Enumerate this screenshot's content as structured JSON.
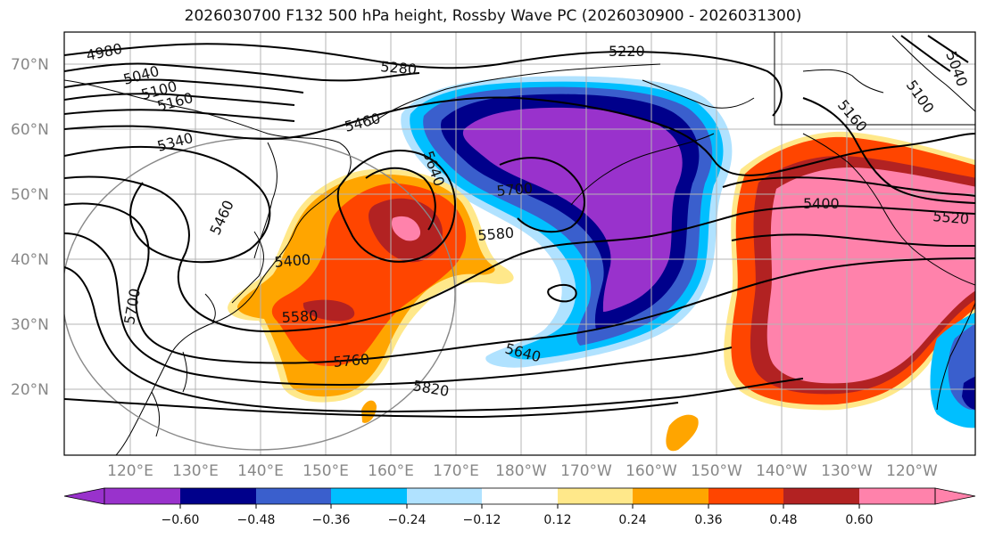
{
  "title": "2026030700 F132 500 hPa height, Rossby Wave PC (2026030900 - 2026031300)",
  "lat_labels": [
    "70°N",
    "60°N",
    "50°N",
    "40°N",
    "30°N",
    "20°N"
  ],
  "lon_labels": [
    "120°E",
    "130°E",
    "140°E",
    "150°E",
    "160°E",
    "170°E",
    "180°W",
    "170°W",
    "160°W",
    "150°W",
    "140°W",
    "130°W",
    "120°W"
  ],
  "contour_labels": [
    "4980",
    "5040",
    "5100",
    "5160",
    "5220",
    "5280",
    "5340",
    "5460",
    "5640",
    "5700",
    "5460",
    "5400",
    "5580",
    "5760",
    "5820",
    "5640",
    "5580",
    "5400",
    "5520",
    "5160",
    "5040",
    "5100",
    "5700"
  ],
  "colorbar": {
    "ticks": [
      "−0.60",
      "−0.48",
      "−0.36",
      "−0.24",
      "−0.12",
      "0.12",
      "0.24",
      "0.36",
      "0.48",
      "0.60"
    ],
    "colors": [
      "#9932cc",
      "#00008b",
      "#3a5fcd",
      "#00bfff",
      "#b0e2ff",
      "#ffffff",
      "#ffe88a",
      "#ffa500",
      "#ff4500",
      "#b22222",
      "#ff82ab"
    ]
  },
  "colors": {
    "purple": "#9932cc",
    "navy": "#00008b",
    "blue": "#3a5fcd",
    "sky": "#00bfff",
    "lightblue": "#b0e2ff",
    "yellow": "#ffe88a",
    "orange": "#ffa500",
    "redorange": "#ff4500",
    "darkred": "#b22222",
    "pink": "#ff82ab"
  }
}
